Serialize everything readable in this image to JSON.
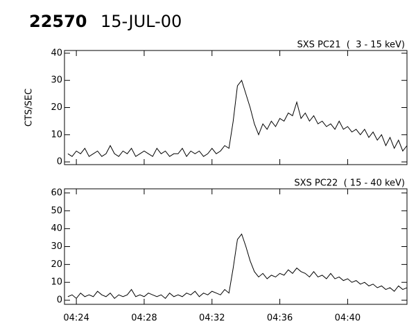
{
  "header": {
    "id": "22570",
    "date": "15-JUL-00"
  },
  "chart_data": [
    {
      "type": "line",
      "title": "SXS PC21  (  3 - 15 keV)",
      "y_label": "CTS/SEC",
      "x": [
        263.5,
        263.75,
        264,
        264.25,
        264.5,
        264.75,
        265,
        265.25,
        265.5,
        265.75,
        266,
        266.25,
        266.5,
        266.75,
        267,
        267.25,
        267.5,
        267.75,
        268,
        268.25,
        268.5,
        268.75,
        269,
        269.25,
        269.5,
        269.75,
        270,
        270.25,
        270.5,
        270.75,
        271,
        271.25,
        271.5,
        271.75,
        272,
        272.25,
        272.5,
        272.75,
        273,
        273.25,
        273.5,
        273.75,
        274,
        274.25,
        274.5,
        274.75,
        275,
        275.25,
        275.5,
        275.75,
        276,
        276.25,
        276.5,
        276.75,
        277,
        277.25,
        277.5,
        277.75,
        278,
        278.25,
        278.5,
        278.75,
        279,
        279.25,
        279.5,
        279.75,
        280,
        280.25,
        280.5,
        280.75,
        281,
        281.25,
        281.5,
        281.75,
        282,
        282.25,
        282.5,
        282.75,
        283,
        283.25,
        283.5
      ],
      "values": [
        3,
        2,
        4,
        3,
        5,
        2,
        3,
        4,
        2,
        3,
        6,
        3,
        2,
        4,
        3,
        5,
        2,
        3,
        4,
        3,
        2,
        5,
        3,
        4,
        2,
        3,
        3,
        5,
        2,
        4,
        3,
        4,
        2,
        3,
        5,
        3,
        4,
        6,
        5,
        15,
        28,
        30,
        25,
        20,
        14,
        10,
        14,
        12,
        15,
        13,
        16,
        15,
        18,
        17,
        22,
        16,
        18,
        15,
        17,
        14,
        15,
        13,
        14,
        12,
        15,
        12,
        13,
        11,
        12,
        10,
        12,
        9,
        11,
        8,
        10,
        6,
        9,
        5,
        8,
        4,
        6
      ],
      "xlim": [
        263.3,
        283.5
      ],
      "xticks": [
        264,
        268,
        272,
        276,
        280
      ],
      "ylim": [
        -1,
        41
      ],
      "yticks": [
        0,
        10,
        20,
        30,
        40
      ],
      "color": "#000000"
    },
    {
      "type": "line",
      "title": "SXS PC22  ( 15 - 40 keV)",
      "x": [
        263.5,
        263.75,
        264,
        264.25,
        264.5,
        264.75,
        265,
        265.25,
        265.5,
        265.75,
        266,
        266.25,
        266.5,
        266.75,
        267,
        267.25,
        267.5,
        267.75,
        268,
        268.25,
        268.5,
        268.75,
        269,
        269.25,
        269.5,
        269.75,
        270,
        270.25,
        270.5,
        270.75,
        271,
        271.25,
        271.5,
        271.75,
        272,
        272.25,
        272.5,
        272.75,
        273,
        273.25,
        273.5,
        273.75,
        274,
        274.25,
        274.5,
        274.75,
        275,
        275.25,
        275.5,
        275.75,
        276,
        276.25,
        276.5,
        276.75,
        277,
        277.25,
        277.5,
        277.75,
        278,
        278.25,
        278.5,
        278.75,
        279,
        279.25,
        279.5,
        279.75,
        280,
        280.25,
        280.5,
        280.75,
        281,
        281.25,
        281.5,
        281.75,
        282,
        282.25,
        282.5,
        282.75,
        283,
        283.25,
        283.5
      ],
      "values": [
        2,
        3,
        1,
        4,
        2,
        3,
        2,
        5,
        3,
        2,
        4,
        1,
        3,
        2,
        3,
        6,
        2,
        3,
        2,
        4,
        3,
        2,
        3,
        1,
        4,
        2,
        3,
        2,
        4,
        3,
        5,
        2,
        4,
        3,
        5,
        4,
        3,
        6,
        4,
        18,
        34,
        37,
        30,
        22,
        16,
        13,
        15,
        12,
        14,
        13,
        15,
        14,
        17,
        15,
        18,
        16,
        15,
        13,
        16,
        13,
        14,
        12,
        15,
        12,
        13,
        11,
        12,
        10,
        11,
        9,
        10,
        8,
        9,
        7,
        8,
        6,
        7,
        5,
        8,
        6,
        7
      ],
      "xlim": [
        263.3,
        283.5
      ],
      "xticks": [
        {
          "value": 264,
          "label": "04:24"
        },
        {
          "value": 268,
          "label": "04:28"
        },
        {
          "value": 272,
          "label": "04:32"
        },
        {
          "value": 276,
          "label": "04:36"
        },
        {
          "value": 280,
          "label": "04:40"
        }
      ],
      "ylim": [
        -2.3,
        62.3
      ],
      "yticks": [
        0,
        10,
        20,
        30,
        40,
        50,
        60
      ],
      "color": "#000000"
    }
  ]
}
